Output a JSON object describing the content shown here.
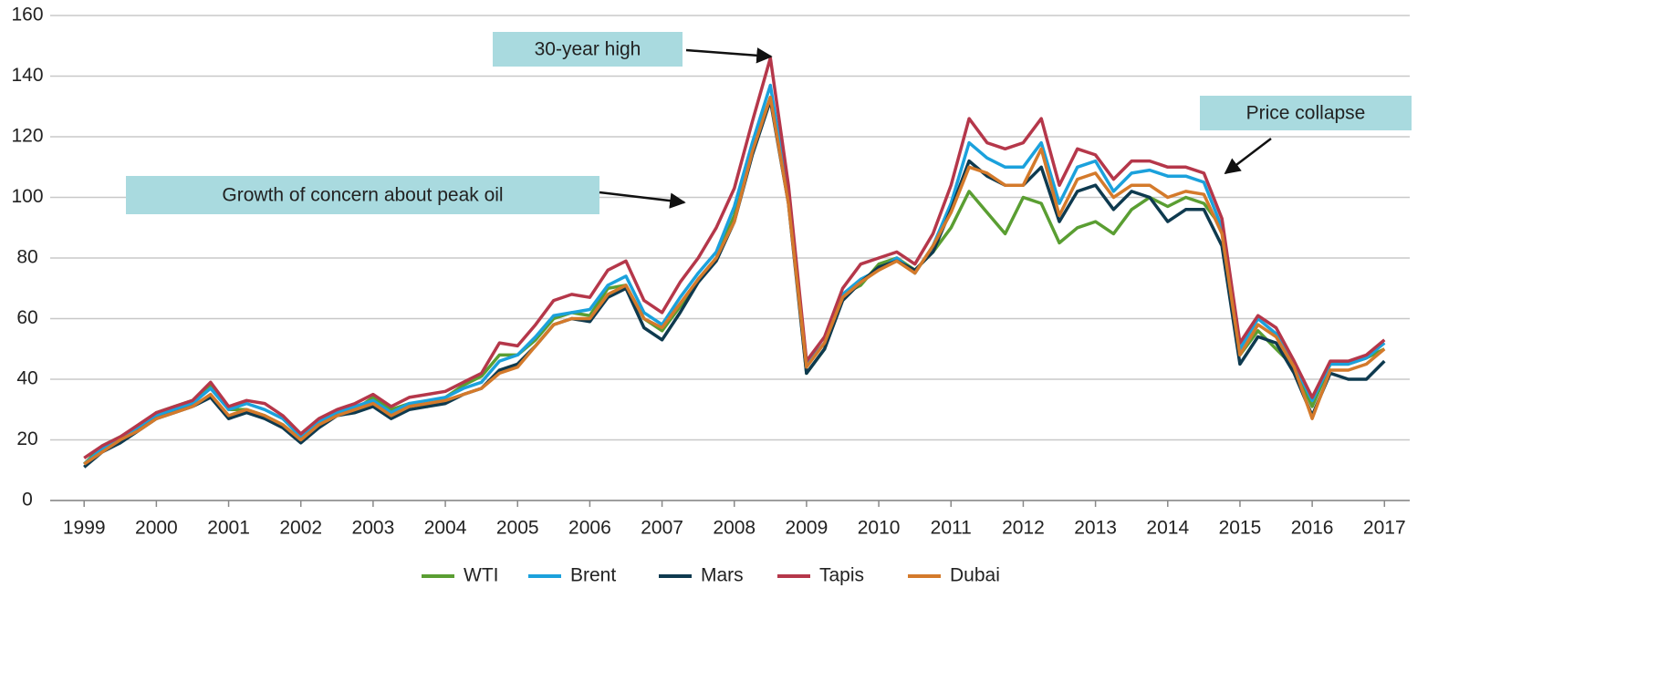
{
  "chart_data": {
    "type": "line",
    "x": [
      1999,
      1999.25,
      1999.5,
      1999.75,
      2000,
      2000.25,
      2000.5,
      2000.75,
      2001,
      2001.25,
      2001.5,
      2001.75,
      2002,
      2002.25,
      2002.5,
      2002.75,
      2003,
      2003.25,
      2003.5,
      2003.75,
      2004,
      2004.25,
      2004.5,
      2004.75,
      2005,
      2005.25,
      2005.5,
      2005.75,
      2006,
      2006.25,
      2006.5,
      2006.75,
      2007,
      2007.25,
      2007.5,
      2007.75,
      2008,
      2008.25,
      2008.5,
      2008.75,
      2009,
      2009.25,
      2009.5,
      2009.75,
      2010,
      2010.25,
      2010.5,
      2010.75,
      2011,
      2011.25,
      2011.5,
      2011.75,
      2012,
      2012.25,
      2012.5,
      2012.75,
      2013,
      2013.25,
      2013.5,
      2013.75,
      2014,
      2014.25,
      2014.5,
      2014.75,
      2015,
      2015.25,
      2015.5,
      2015.75,
      2016,
      2016.25,
      2016.5,
      2016.75,
      2017
    ],
    "series": [
      {
        "name": "WTI",
        "color": "#5a9e32",
        "values": [
          12,
          18,
          21,
          24,
          29,
          31,
          33,
          38,
          30,
          30,
          28,
          25,
          20,
          26,
          29,
          30,
          34,
          30,
          32,
          31,
          34,
          38,
          41,
          48,
          48,
          53,
          60,
          62,
          61,
          70,
          71,
          60,
          56,
          64,
          73,
          80,
          94,
          116,
          133,
          100,
          42,
          50,
          68,
          71,
          78,
          80,
          76,
          82,
          90,
          102,
          95,
          88,
          100,
          98,
          85,
          90,
          92,
          88,
          96,
          100,
          97,
          100,
          98,
          90,
          48,
          56,
          50,
          44,
          31,
          45,
          45,
          47,
          50
        ]
      },
      {
        "name": "Brent",
        "color": "#1ba1dc",
        "values": [
          12,
          17,
          20,
          24,
          28,
          30,
          32,
          37,
          30,
          32,
          30,
          27,
          21,
          26,
          29,
          31,
          33,
          29,
          32,
          33,
          34,
          37,
          39,
          46,
          48,
          54,
          61,
          62,
          63,
          71,
          74,
          62,
          58,
          67,
          75,
          82,
          97,
          118,
          137,
          100,
          45,
          52,
          68,
          73,
          76,
          80,
          75,
          84,
          98,
          118,
          113,
          110,
          110,
          118,
          98,
          110,
          112,
          102,
          108,
          109,
          107,
          107,
          105,
          90,
          50,
          60,
          55,
          45,
          33,
          45,
          45,
          47,
          52
        ]
      },
      {
        "name": "Mars",
        "color": "#0e3a4f",
        "values": [
          11,
          16,
          19,
          23,
          27,
          29,
          31,
          34,
          27,
          29,
          27,
          24,
          19,
          24,
          28,
          29,
          31,
          27,
          30,
          31,
          32,
          35,
          37,
          43,
          45,
          51,
          58,
          60,
          59,
          67,
          70,
          57,
          53,
          62,
          72,
          79,
          92,
          114,
          132,
          98,
          42,
          50,
          66,
          72,
          77,
          79,
          76,
          82,
          96,
          112,
          107,
          104,
          104,
          110,
          92,
          102,
          104,
          96,
          102,
          100,
          92,
          96,
          96,
          84,
          45,
          54,
          52,
          42,
          28,
          42,
          40,
          40,
          46
        ]
      },
      {
        "name": "Tapis",
        "color": "#b5374a",
        "values": [
          14,
          18,
          21,
          25,
          29,
          31,
          33,
          39,
          31,
          33,
          32,
          28,
          22,
          27,
          30,
          32,
          35,
          31,
          34,
          35,
          36,
          39,
          42,
          52,
          51,
          58,
          66,
          68,
          67,
          76,
          79,
          66,
          62,
          72,
          80,
          90,
          103,
          125,
          146,
          104,
          46,
          54,
          70,
          78,
          80,
          82,
          78,
          88,
          104,
          126,
          118,
          116,
          118,
          126,
          104,
          116,
          114,
          106,
          112,
          112,
          110,
          110,
          108,
          93,
          52,
          61,
          57,
          46,
          34,
          46,
          46,
          48,
          53
        ]
      },
      {
        "name": "Dubai",
        "color": "#d47a2b",
        "values": [
          12,
          16,
          20,
          23,
          27,
          29,
          31,
          35,
          28,
          30,
          28,
          25,
          20,
          25,
          28,
          30,
          32,
          28,
          31,
          32,
          33,
          35,
          37,
          42,
          44,
          51,
          58,
          60,
          60,
          68,
          71,
          60,
          57,
          65,
          73,
          80,
          92,
          115,
          133,
          98,
          44,
          52,
          67,
          72,
          76,
          79,
          75,
          84,
          95,
          110,
          108,
          104,
          104,
          116,
          94,
          106,
          108,
          100,
          104,
          104,
          100,
          102,
          101,
          88,
          48,
          58,
          54,
          44,
          27,
          43,
          43,
          45,
          50
        ]
      }
    ],
    "xlim": [
      1998.53,
      2017.35
    ],
    "xticks": [
      1999,
      2000,
      2001,
      2002,
      2003,
      2004,
      2005,
      2006,
      2007,
      2008,
      2009,
      2010,
      2011,
      2012,
      2013,
      2014,
      2015,
      2016,
      2017
    ],
    "ylim": [
      0,
      160
    ],
    "yticks": [
      0,
      20,
      40,
      60,
      80,
      100,
      120,
      140,
      160
    ],
    "grid": true,
    "legend": "bottom",
    "annotations": [
      "30-year high",
      "Growth of concern about peak oil",
      "Price collapse"
    ]
  }
}
